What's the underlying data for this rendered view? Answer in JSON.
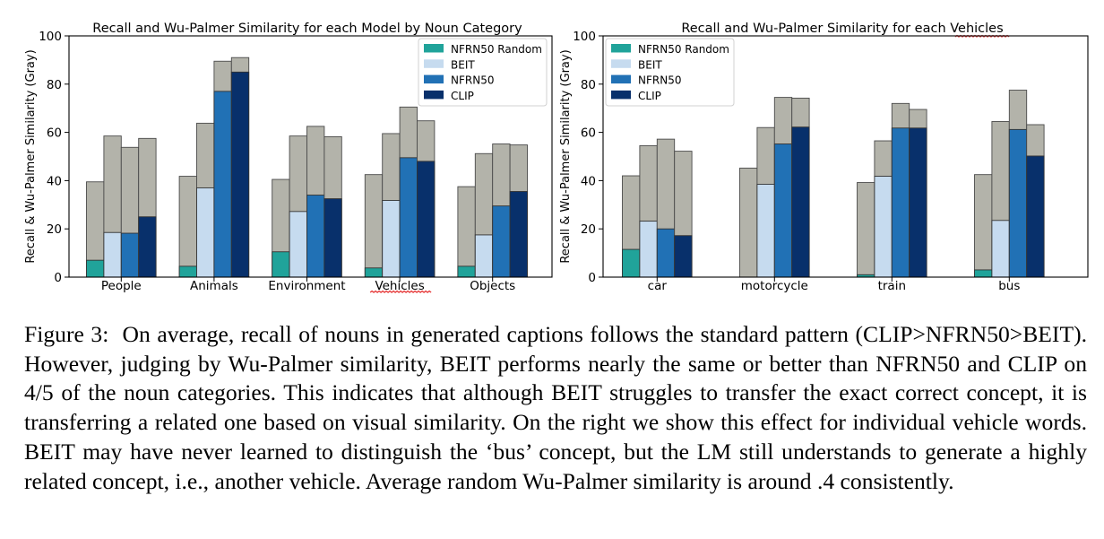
{
  "colors": {
    "NFRN50 Random": "#20a39a",
    "BEIT": "#c6dbef",
    "NFRN50": "#2171b5",
    "CLIP": "#08306b",
    "wu_palmer": "#b3b3aa",
    "underline": "#e53030"
  },
  "chart_data": [
    {
      "type": "bar",
      "title": "Recall and Wu-Palmer Similarity for each Model by Noun Category",
      "ylabel": "Recall & Wu-Palmer Similarity (Gray)",
      "xlabel": "",
      "ylim": [
        0,
        100
      ],
      "yticks": [
        "0",
        "20",
        "40",
        "60",
        "80",
        "100"
      ],
      "legend_position": "top-right",
      "categories": [
        "People",
        "Animals",
        "Environment",
        "Vehicles",
        "Objects"
      ],
      "underlined_category": "Vehicles",
      "series": [
        {
          "name": "NFRN50 Random",
          "recall": [
            7,
            4.5,
            10.5,
            3.8,
            4.5
          ],
          "wu_palmer": [
            39.5,
            41.8,
            40.5,
            42.5,
            37.5
          ]
        },
        {
          "name": "BEIT",
          "recall": [
            18.5,
            37,
            27.2,
            31.8,
            17.5
          ],
          "wu_palmer": [
            58.5,
            63.8,
            58.5,
            59.5,
            51.2
          ]
        },
        {
          "name": "NFRN50",
          "recall": [
            18.2,
            77,
            34,
            49.5,
            29.5
          ],
          "wu_palmer": [
            53.8,
            89.5,
            62.5,
            70.5,
            55.2
          ]
        },
        {
          "name": "CLIP",
          "recall": [
            25,
            85,
            32.5,
            48,
            35.5
          ],
          "wu_palmer": [
            57.5,
            91,
            58.2,
            64.8,
            54.8
          ]
        }
      ]
    },
    {
      "type": "bar",
      "title": "Recall and Wu-Palmer Similarity for each Vehicles",
      "underlined_title_word": "Vehicles",
      "ylabel": "Recall & Wu-Palmer Similarity (Gray)",
      "xlabel": "",
      "ylim": [
        0,
        100
      ],
      "yticks": [
        "0",
        "20",
        "40",
        "60",
        "80",
        "100"
      ],
      "legend_position": "top-left",
      "categories": [
        "car",
        "motorcycle",
        "train",
        "bus"
      ],
      "series": [
        {
          "name": "NFRN50 Random",
          "recall": [
            11.5,
            0,
            1,
            3
          ],
          "wu_palmer": [
            42,
            45.2,
            39.2,
            42.5
          ]
        },
        {
          "name": "BEIT",
          "recall": [
            23.2,
            38.5,
            41.8,
            23.5
          ],
          "wu_palmer": [
            54.5,
            62,
            56.5,
            64.5
          ]
        },
        {
          "name": "NFRN50",
          "recall": [
            20,
            55.2,
            61.8,
            61.2
          ],
          "wu_palmer": [
            57.2,
            74.5,
            72,
            77.5
          ]
        },
        {
          "name": "CLIP",
          "recall": [
            17.2,
            62.2,
            61.8,
            50.2
          ],
          "wu_palmer": [
            52.2,
            74.2,
            69.5,
            63.2
          ]
        }
      ]
    }
  ],
  "caption": {
    "prefix": "Figure 3:",
    "text": "On average, recall of nouns in generated captions follows the standard pattern (CLIP>NFRN50>BEIT). However, judging by Wu-Palmer similarity, BEIT performs nearly the same or better than NFRN50 and CLIP on 4/5 of the noun categories. This indicates that although BEIT struggles to transfer the exact correct concept, it is transferring a related one based on visual similarity. On the right we show this effect for individual vehicle words. BEIT may have never learned to distinguish the ‘bus’ concept, but the LM still understands to generate a highly related concept, i.e., another vehicle. Average random Wu-Palmer similarity is around .4 consistently."
  }
}
